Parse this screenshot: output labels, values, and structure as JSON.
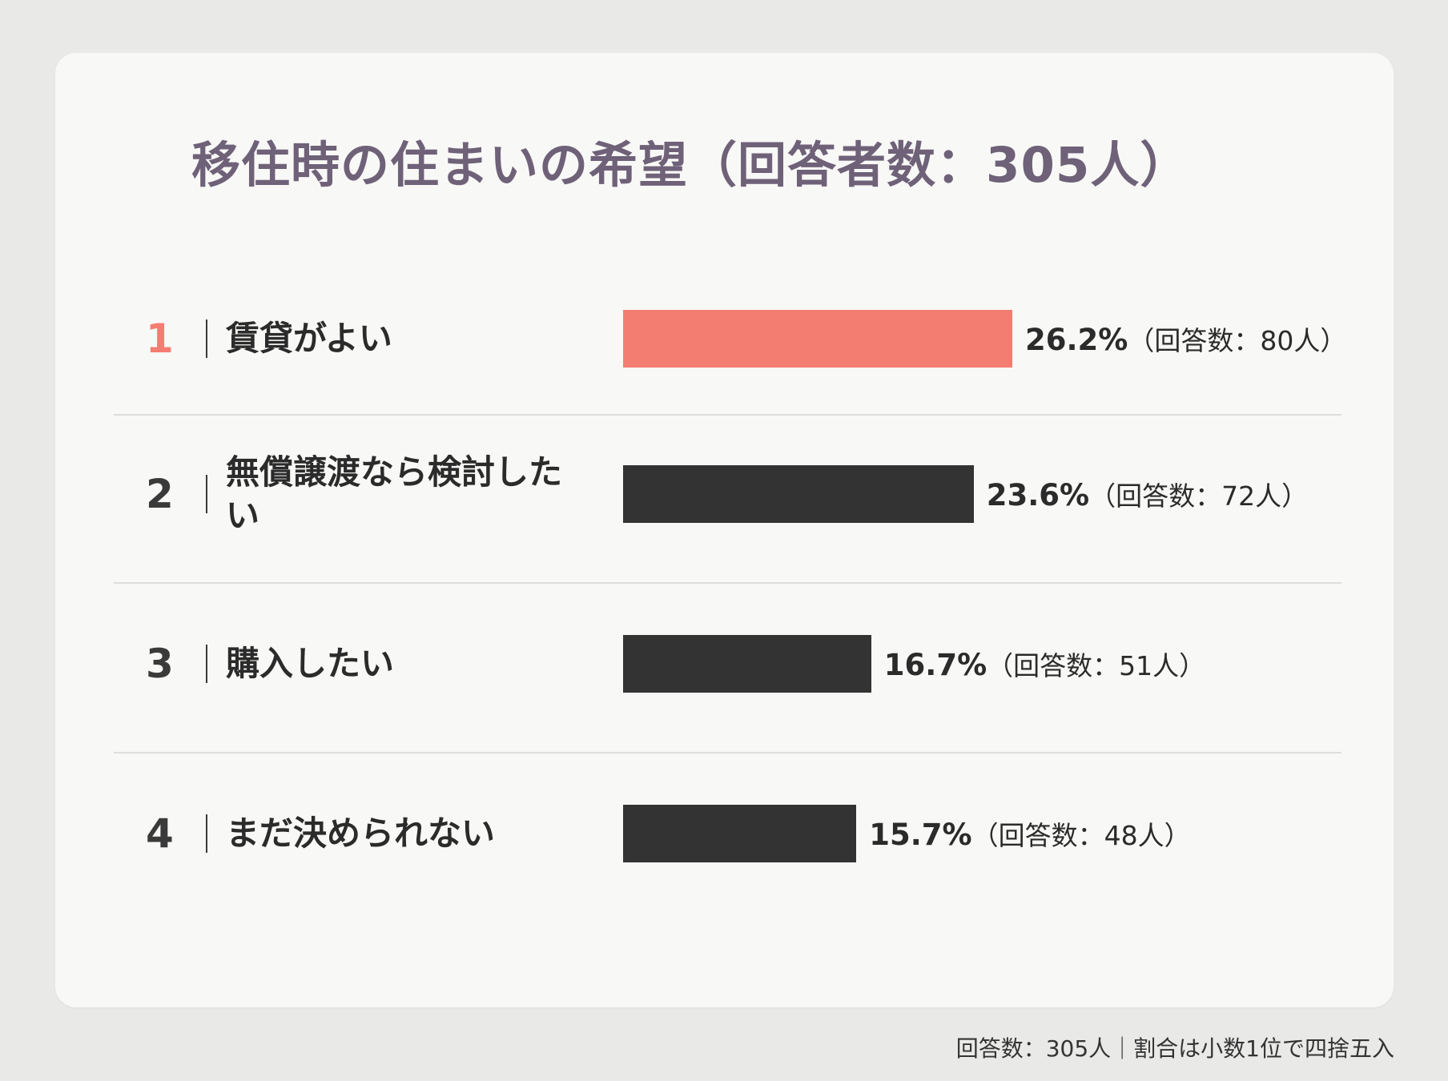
{
  "colors": {
    "page_background": "#e9eae8",
    "card_background": "#f8f8f6",
    "title": "#6e6178",
    "highlight": "#f47d72",
    "bar_default": "#333333",
    "divider": "#dedede"
  },
  "chart_data": {
    "type": "bar",
    "orientation": "horizontal",
    "title": "移住時の住まいの希望（回答者数：305人）",
    "categories": [
      "賃貸がよい",
      "無償譲渡なら検討したい",
      "購入したい",
      "まだ決められない"
    ],
    "ranks": [
      "1",
      "2",
      "3",
      "4"
    ],
    "values": [
      26.2,
      23.6,
      16.7,
      15.7
    ],
    "counts": [
      80,
      72,
      51,
      48
    ],
    "value_labels": [
      "26.2%",
      "23.6%",
      "16.7%",
      "15.7%"
    ],
    "count_labels": [
      "（回答数：80人）",
      "（回答数：72人）",
      "（回答数：51人）",
      "（回答数：48人）"
    ],
    "unit": "%",
    "highlight_index": 0,
    "grid": false,
    "legend": "none"
  },
  "footer": {
    "note": "回答数：305人｜割合は小数1位で四捨五入"
  }
}
